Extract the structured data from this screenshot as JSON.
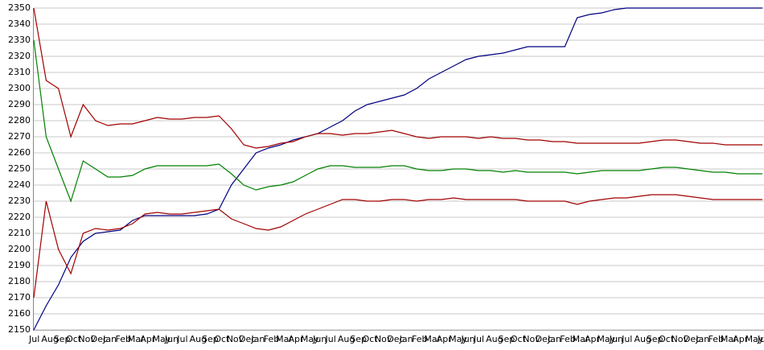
{
  "chart_data": {
    "type": "line",
    "categories": [
      "Jul",
      "Aug",
      "Sep",
      "Oct",
      "Nov",
      "Dec",
      "Jan",
      "Feb",
      "Mar",
      "Apr",
      "May",
      "Jun",
      "Jul",
      "Aug",
      "Sep",
      "Oct",
      "Nov",
      "Dec",
      "Jan",
      "Feb",
      "Mar",
      "Apr",
      "May",
      "Jun",
      "Jul",
      "Aug",
      "Sep",
      "Oct",
      "Nov",
      "Dec",
      "Jan",
      "Feb",
      "Mar",
      "Apr",
      "May",
      "Jun",
      "Jul",
      "Aug",
      "Sep",
      "Oct",
      "Nov",
      "Dec",
      "Jan",
      "Feb",
      "Mar",
      "Apr",
      "May",
      "Jun",
      "Jul",
      "Aug",
      "Sep",
      "Oct",
      "Nov",
      "Dec",
      "Jan",
      "Feb",
      "Mar",
      "Apr",
      "May",
      "Jun"
    ],
    "series": [
      {
        "color": "#000080",
        "values": [
          2150,
          2165,
          2178,
          2195,
          2205,
          2210,
          2211,
          2212,
          2218,
          2221,
          2221,
          2221,
          2221,
          2221,
          2222,
          2225,
          2240,
          2250,
          2260,
          2263,
          2265,
          2268,
          2270,
          2272,
          2276,
          2280,
          2286,
          2290,
          2292,
          2294,
          2296,
          2300,
          2306,
          2310,
          2314,
          2318,
          2320,
          2321,
          2322,
          2324,
          2326,
          2326,
          2326,
          2326,
          2344,
          2346,
          2347,
          2349,
          2350,
          2350,
          2350,
          2350,
          2350,
          2350,
          2350,
          2350,
          2350,
          2350,
          2350,
          2350
        ]
      },
      {
        "color": "#a00000",
        "values": [
          2350,
          2305,
          2300,
          2270,
          2290,
          2280,
          2277,
          2278,
          2278,
          2280,
          2282,
          2281,
          2281,
          2282,
          2282,
          2283,
          2275,
          2265,
          2263,
          2264,
          2266,
          2267,
          2270,
          2272,
          2272,
          2271,
          2272,
          2272,
          2273,
          2274,
          2272,
          2270,
          2269,
          2270,
          2270,
          2270,
          2269,
          2270,
          2269,
          2269,
          2268,
          2268,
          2267,
          2267,
          2266,
          2266,
          2266,
          2266,
          2266,
          2266,
          2267,
          2268,
          2268,
          2267,
          2266,
          2266,
          2265,
          2265,
          2265,
          2265
        ]
      },
      {
        "color": "#008000",
        "values": [
          2330,
          2270,
          2250,
          2230,
          2255,
          2250,
          2245,
          2245,
          2246,
          2250,
          2252,
          2252,
          2252,
          2252,
          2252,
          2253,
          2247,
          2240,
          2237,
          2239,
          2240,
          2242,
          2246,
          2250,
          2252,
          2252,
          2251,
          2251,
          2251,
          2252,
          2252,
          2250,
          2249,
          2249,
          2250,
          2250,
          2249,
          2249,
          2248,
          2249,
          2248,
          2248,
          2248,
          2248,
          2247,
          2248,
          2249,
          2249,
          2249,
          2249,
          2250,
          2251,
          2251,
          2250,
          2249,
          2248,
          2248,
          2247,
          2247,
          2247
        ]
      },
      {
        "color": "#a00000",
        "values": [
          2170,
          2230,
          2200,
          2185,
          2210,
          2213,
          2212,
          2213,
          2216,
          2222,
          2223,
          2222,
          2222,
          2223,
          2224,
          2225,
          2219,
          2216,
          2213,
          2212,
          2214,
          2218,
          2222,
          2225,
          2228,
          2231,
          2231,
          2230,
          2230,
          2231,
          2231,
          2230,
          2231,
          2231,
          2232,
          2231,
          2231,
          2231,
          2231,
          2231,
          2230,
          2230,
          2230,
          2230,
          2228,
          2230,
          2231,
          2232,
          2232,
          2233,
          2234,
          2234,
          2234,
          2233,
          2232,
          2231,
          2231,
          2231,
          2231,
          2231
        ]
      }
    ],
    "ylim": [
      2150,
      2350
    ],
    "yticks": [
      2150,
      2160,
      2170,
      2180,
      2190,
      2200,
      2210,
      2220,
      2230,
      2240,
      2250,
      2260,
      2270,
      2280,
      2290,
      2300,
      2310,
      2320,
      2330,
      2340,
      2350
    ],
    "grid": true
  }
}
